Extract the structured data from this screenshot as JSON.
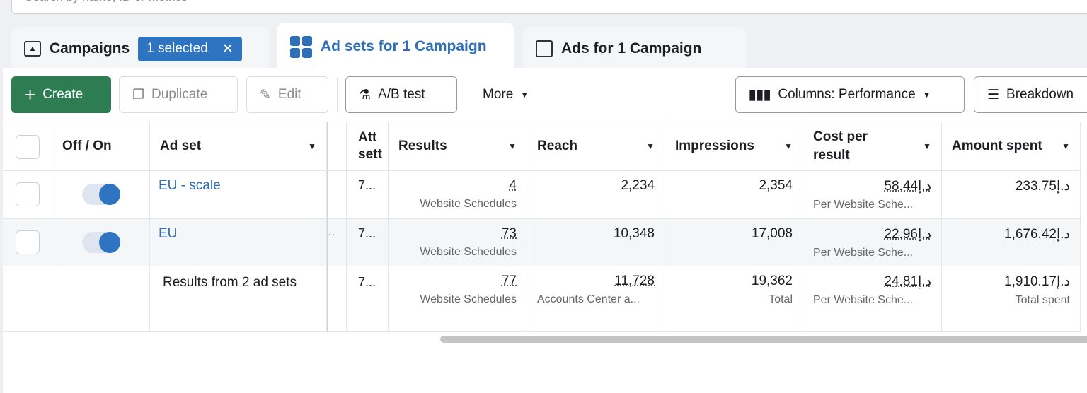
{
  "search": {
    "placeholder": "Search by name, ID or metrics"
  },
  "tabs": [
    {
      "label": "Campaigns",
      "badge": "1 selected"
    },
    {
      "label": "Ad sets for 1 Campaign"
    },
    {
      "label": "Ads for 1 Campaign"
    }
  ],
  "toolbar": {
    "create": "Create",
    "duplicate": "Duplicate",
    "edit": "Edit",
    "ab_test": "A/B test",
    "more": "More",
    "columns": "Columns: Performance",
    "breakdown": "Breakdown"
  },
  "table": {
    "headers": {
      "toggle": "Off / On",
      "ad_set": "Ad set",
      "attribution": "Att sett",
      "results": "Results",
      "reach": "Reach",
      "impressions": "Impressions",
      "cost": "Cost per result",
      "spent": "Amount spent"
    },
    "rows": [
      {
        "name": "EU - scale",
        "attr": "7...",
        "results": "4",
        "results_sub": "Website Schedules",
        "reach": "2,234",
        "impressions": "2,354",
        "cost": "58.44د.إ",
        "cost_sub": "Per Website Sche...",
        "spent": "233.75د.إ",
        "on": true
      },
      {
        "name": "EU",
        "attr": "7...",
        "results": "73",
        "results_sub": "Website Schedules",
        "reach": "10,348",
        "impressions": "17,008",
        "cost": "22.96د.إ",
        "cost_sub": "Per Website Sche...",
        "spent": "1,676.42د.إ",
        "on": true
      }
    ],
    "footer": {
      "label": "Results from 2 ad sets",
      "attr": "7...",
      "results": "77",
      "results_sub": "Website Schedules",
      "reach": "11,728",
      "reach_sub": "Accounts Center a...",
      "impressions": "19,362",
      "impressions_sub": "Total",
      "cost": "24.81د.إ",
      "cost_sub": "Per Website Sche...",
      "spent": "1,910.17د.إ",
      "spent_sub": "Total spent"
    }
  }
}
